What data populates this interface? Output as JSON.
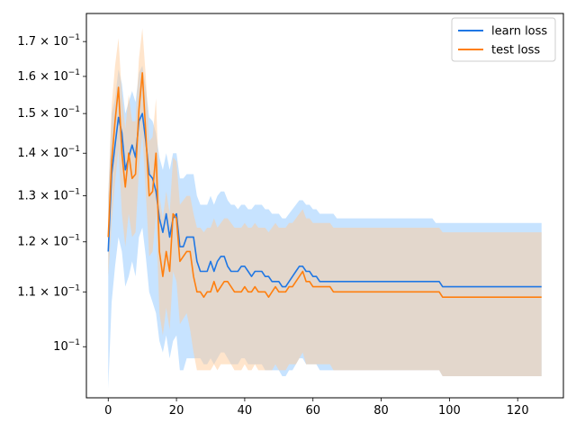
{
  "chart_data": {
    "type": "line",
    "title": "",
    "xlabel": "",
    "ylabel": "",
    "y_scale": "log",
    "xlim": [
      -6.4,
      133.4
    ],
    "ylim": [
      0.0915,
      0.1785
    ],
    "grid": false,
    "legend_position": "top-right",
    "x_ticks": [
      0,
      20,
      40,
      60,
      80,
      100,
      120
    ],
    "y_ticks": [
      {
        "value": 0.1,
        "label": "10⁻¹",
        "coef": "",
        "exp": "−1"
      },
      {
        "value": 0.11,
        "label": "1.1×10⁻¹",
        "coef": "1.1",
        "exp": "−1"
      },
      {
        "value": 0.12,
        "label": "1.2×10⁻¹",
        "coef": "1.2",
        "exp": "−1"
      },
      {
        "value": 0.13,
        "label": "1.3×10⁻¹",
        "coef": "1.3",
        "exp": "−1"
      },
      {
        "value": 0.14,
        "label": "1.4×10⁻¹",
        "coef": "1.4",
        "exp": "−1"
      },
      {
        "value": 0.15,
        "label": "1.5×10⁻¹",
        "coef": "1.5",
        "exp": "−1"
      },
      {
        "value": 0.16,
        "label": "1.6×10⁻¹",
        "coef": "1.6",
        "exp": "−1"
      },
      {
        "value": 0.17,
        "label": "1.7×10⁻¹",
        "coef": "1.7",
        "exp": "−1"
      }
    ],
    "x": [
      0,
      1,
      2,
      3,
      4,
      5,
      6,
      7,
      8,
      9,
      10,
      11,
      12,
      13,
      14,
      15,
      16,
      17,
      18,
      19,
      20,
      21,
      22,
      23,
      24,
      25,
      26,
      27,
      28,
      29,
      30,
      31,
      32,
      33,
      34,
      35,
      36,
      37,
      38,
      39,
      40,
      41,
      42,
      43,
      44,
      45,
      46,
      47,
      48,
      49,
      50,
      51,
      52,
      53,
      54,
      55,
      56,
      57,
      58,
      59,
      60,
      61,
      62,
      63,
      64,
      65,
      66,
      67,
      68,
      69,
      70,
      71,
      72,
      73,
      74,
      75,
      76,
      77,
      78,
      79,
      80,
      81,
      82,
      83,
      84,
      85,
      86,
      87,
      88,
      89,
      90,
      91,
      92,
      93,
      94,
      95,
      96,
      97,
      98,
      99,
      100,
      101,
      102,
      103,
      104,
      105,
      106,
      107,
      108,
      109,
      110,
      111,
      112,
      113,
      114,
      115,
      116,
      117,
      118,
      119,
      120,
      121,
      122,
      123,
      124,
      125,
      126,
      127
    ],
    "series": [
      {
        "name": "learn loss",
        "color": "#1f77e4",
        "band_color": "#99ccff",
        "values": [
          0.118,
          0.135,
          0.142,
          0.149,
          0.145,
          0.136,
          0.139,
          0.142,
          0.139,
          0.148,
          0.15,
          0.143,
          0.135,
          0.134,
          0.131,
          0.125,
          0.122,
          0.126,
          0.121,
          0.125,
          0.126,
          0.119,
          0.119,
          0.121,
          0.121,
          0.121,
          0.116,
          0.114,
          0.114,
          0.114,
          0.116,
          0.114,
          0.116,
          0.117,
          0.117,
          0.115,
          0.114,
          0.114,
          0.114,
          0.115,
          0.115,
          0.114,
          0.113,
          0.114,
          0.114,
          0.114,
          0.113,
          0.113,
          0.112,
          0.112,
          0.112,
          0.111,
          0.111,
          0.112,
          0.113,
          0.114,
          0.115,
          0.115,
          0.114,
          0.114,
          0.113,
          0.113,
          0.112,
          0.112,
          0.112,
          0.112,
          0.112,
          0.112,
          0.112,
          0.112,
          0.112,
          0.112,
          0.112,
          0.112,
          0.112,
          0.112,
          0.112,
          0.112,
          0.112,
          0.112,
          0.112,
          0.112,
          0.112,
          0.112,
          0.112,
          0.112,
          0.112,
          0.112,
          0.112,
          0.112,
          0.112,
          0.112,
          0.112,
          0.112,
          0.112,
          0.112,
          0.112,
          0.112,
          0.111,
          0.111,
          0.111,
          0.111,
          0.111,
          0.111,
          0.111,
          0.111,
          0.111,
          0.111,
          0.111,
          0.111,
          0.111,
          0.111,
          0.111,
          0.111,
          0.111,
          0.111,
          0.111,
          0.111,
          0.111,
          0.111,
          0.111,
          0.111,
          0.111,
          0.111,
          0.111,
          0.111,
          0.111,
          0.111
        ],
        "upper": [
          0.13,
          0.15,
          0.154,
          0.162,
          0.158,
          0.15,
          0.153,
          0.156,
          0.153,
          0.161,
          0.163,
          0.157,
          0.149,
          0.148,
          0.145,
          0.139,
          0.136,
          0.14,
          0.136,
          0.14,
          0.14,
          0.134,
          0.134,
          0.135,
          0.135,
          0.135,
          0.13,
          0.128,
          0.128,
          0.128,
          0.13,
          0.128,
          0.13,
          0.131,
          0.131,
          0.129,
          0.128,
          0.128,
          0.127,
          0.128,
          0.128,
          0.127,
          0.127,
          0.128,
          0.128,
          0.128,
          0.127,
          0.127,
          0.126,
          0.126,
          0.126,
          0.125,
          0.125,
          0.126,
          0.127,
          0.128,
          0.129,
          0.129,
          0.128,
          0.128,
          0.127,
          0.127,
          0.126,
          0.126,
          0.126,
          0.126,
          0.126,
          0.125,
          0.125,
          0.125,
          0.125,
          0.125,
          0.125,
          0.125,
          0.125,
          0.125,
          0.125,
          0.125,
          0.125,
          0.125,
          0.125,
          0.125,
          0.125,
          0.125,
          0.125,
          0.125,
          0.125,
          0.125,
          0.125,
          0.125,
          0.125,
          0.125,
          0.125,
          0.125,
          0.125,
          0.125,
          0.124,
          0.124,
          0.124,
          0.124,
          0.124,
          0.124,
          0.124,
          0.124,
          0.124,
          0.124,
          0.124,
          0.124,
          0.124,
          0.124,
          0.124,
          0.124,
          0.124,
          0.124,
          0.124,
          0.124,
          0.124,
          0.124,
          0.124,
          0.124,
          0.124,
          0.124,
          0.124,
          0.124,
          0.124,
          0.124,
          0.124,
          0.124
        ],
        "lower": [
          0.093,
          0.108,
          0.115,
          0.121,
          0.118,
          0.111,
          0.113,
          0.116,
          0.113,
          0.121,
          0.123,
          0.117,
          0.11,
          0.108,
          0.106,
          0.101,
          0.099,
          0.102,
          0.098,
          0.101,
          0.102,
          0.096,
          0.096,
          0.098,
          0.098,
          0.098,
          0.098,
          0.098,
          0.097,
          0.097,
          0.098,
          0.097,
          0.098,
          0.099,
          0.099,
          0.098,
          0.097,
          0.097,
          0.097,
          0.098,
          0.098,
          0.097,
          0.097,
          0.097,
          0.097,
          0.097,
          0.096,
          0.096,
          0.096,
          0.096,
          0.096,
          0.095,
          0.095,
          0.096,
          0.096,
          0.097,
          0.098,
          0.098,
          0.097,
          0.097,
          0.097,
          0.097,
          0.096,
          0.096,
          0.096,
          0.096,
          0.096,
          0.096,
          0.096,
          0.096,
          0.096,
          0.096,
          0.096,
          0.096,
          0.096,
          0.096,
          0.096,
          0.096,
          0.096,
          0.096,
          0.096,
          0.096,
          0.096,
          0.096,
          0.096,
          0.096,
          0.096,
          0.096,
          0.096,
          0.096,
          0.096,
          0.096,
          0.096,
          0.096,
          0.096,
          0.096,
          0.096,
          0.096,
          0.095,
          0.095,
          0.095,
          0.095,
          0.095,
          0.095,
          0.095,
          0.095,
          0.095,
          0.095,
          0.095,
          0.095,
          0.095,
          0.095,
          0.095,
          0.095,
          0.095,
          0.095,
          0.095,
          0.095,
          0.095,
          0.095,
          0.095,
          0.095,
          0.095,
          0.095,
          0.095,
          0.095,
          0.095,
          0.095
        ]
      },
      {
        "name": "test loss",
        "color": "#ff7f0e",
        "band_color": "#ffcc99",
        "values": [
          0.121,
          0.138,
          0.148,
          0.157,
          0.14,
          0.132,
          0.14,
          0.134,
          0.135,
          0.151,
          0.161,
          0.145,
          0.13,
          0.131,
          0.14,
          0.118,
          0.113,
          0.118,
          0.114,
          0.126,
          0.125,
          0.116,
          0.117,
          0.118,
          0.118,
          0.113,
          0.11,
          0.11,
          0.109,
          0.11,
          0.11,
          0.112,
          0.11,
          0.111,
          0.112,
          0.112,
          0.111,
          0.11,
          0.11,
          0.11,
          0.111,
          0.11,
          0.11,
          0.111,
          0.11,
          0.11,
          0.11,
          0.109,
          0.11,
          0.111,
          0.11,
          0.11,
          0.11,
          0.111,
          0.111,
          0.112,
          0.113,
          0.114,
          0.112,
          0.112,
          0.111,
          0.111,
          0.111,
          0.111,
          0.111,
          0.111,
          0.11,
          0.11,
          0.11,
          0.11,
          0.11,
          0.11,
          0.11,
          0.11,
          0.11,
          0.11,
          0.11,
          0.11,
          0.11,
          0.11,
          0.11,
          0.11,
          0.11,
          0.11,
          0.11,
          0.11,
          0.11,
          0.11,
          0.11,
          0.11,
          0.11,
          0.11,
          0.11,
          0.11,
          0.11,
          0.11,
          0.11,
          0.11,
          0.109,
          0.109,
          0.109,
          0.109,
          0.109,
          0.109,
          0.109,
          0.109,
          0.109,
          0.109,
          0.109,
          0.109,
          0.109,
          0.109,
          0.109,
          0.109,
          0.109,
          0.109,
          0.109,
          0.109,
          0.109,
          0.109,
          0.109,
          0.109,
          0.109,
          0.109,
          0.109,
          0.109,
          0.109,
          0.109
        ],
        "upper": [
          0.13,
          0.152,
          0.163,
          0.171,
          0.155,
          0.146,
          0.155,
          0.148,
          0.148,
          0.165,
          0.174,
          0.16,
          0.143,
          0.144,
          0.154,
          0.13,
          0.125,
          0.131,
          0.126,
          0.139,
          0.138,
          0.128,
          0.129,
          0.13,
          0.13,
          0.126,
          0.123,
          0.123,
          0.122,
          0.123,
          0.123,
          0.125,
          0.123,
          0.124,
          0.125,
          0.125,
          0.124,
          0.123,
          0.123,
          0.123,
          0.124,
          0.123,
          0.123,
          0.124,
          0.123,
          0.123,
          0.123,
          0.122,
          0.123,
          0.124,
          0.123,
          0.123,
          0.123,
          0.124,
          0.124,
          0.125,
          0.126,
          0.127,
          0.125,
          0.125,
          0.124,
          0.124,
          0.124,
          0.124,
          0.124,
          0.124,
          0.123,
          0.123,
          0.123,
          0.123,
          0.123,
          0.123,
          0.123,
          0.123,
          0.123,
          0.123,
          0.123,
          0.123,
          0.123,
          0.123,
          0.123,
          0.123,
          0.123,
          0.123,
          0.123,
          0.123,
          0.123,
          0.123,
          0.123,
          0.123,
          0.123,
          0.123,
          0.123,
          0.123,
          0.123,
          0.123,
          0.123,
          0.123,
          0.122,
          0.122,
          0.122,
          0.122,
          0.122,
          0.122,
          0.122,
          0.122,
          0.122,
          0.122,
          0.122,
          0.122,
          0.122,
          0.122,
          0.122,
          0.122,
          0.122,
          0.122,
          0.122,
          0.122,
          0.122,
          0.122,
          0.122,
          0.122,
          0.122,
          0.122,
          0.122,
          0.122,
          0.122,
          0.122
        ],
        "lower": [
          0.113,
          0.124,
          0.133,
          0.141,
          0.126,
          0.119,
          0.126,
          0.121,
          0.122,
          0.136,
          0.145,
          0.131,
          0.117,
          0.118,
          0.126,
          0.106,
          0.102,
          0.107,
          0.103,
          0.114,
          0.112,
          0.104,
          0.105,
          0.106,
          0.103,
          0.099,
          0.096,
          0.096,
          0.096,
          0.096,
          0.096,
          0.097,
          0.096,
          0.097,
          0.097,
          0.097,
          0.097,
          0.096,
          0.096,
          0.096,
          0.097,
          0.096,
          0.096,
          0.097,
          0.096,
          0.096,
          0.096,
          0.096,
          0.096,
          0.097,
          0.096,
          0.096,
          0.096,
          0.097,
          0.097,
          0.097,
          0.098,
          0.099,
          0.097,
          0.097,
          0.097,
          0.097,
          0.097,
          0.097,
          0.097,
          0.097,
          0.096,
          0.096,
          0.096,
          0.096,
          0.096,
          0.096,
          0.096,
          0.096,
          0.096,
          0.096,
          0.096,
          0.096,
          0.096,
          0.096,
          0.096,
          0.096,
          0.096,
          0.096,
          0.096,
          0.096,
          0.096,
          0.096,
          0.096,
          0.096,
          0.096,
          0.096,
          0.096,
          0.096,
          0.096,
          0.096,
          0.096,
          0.096,
          0.095,
          0.095,
          0.095,
          0.095,
          0.095,
          0.095,
          0.095,
          0.095,
          0.095,
          0.095,
          0.095,
          0.095,
          0.095,
          0.095,
          0.095,
          0.095,
          0.095,
          0.095,
          0.095,
          0.095,
          0.095,
          0.095,
          0.095,
          0.095,
          0.095,
          0.095,
          0.095,
          0.095,
          0.095,
          0.095
        ]
      }
    ]
  }
}
